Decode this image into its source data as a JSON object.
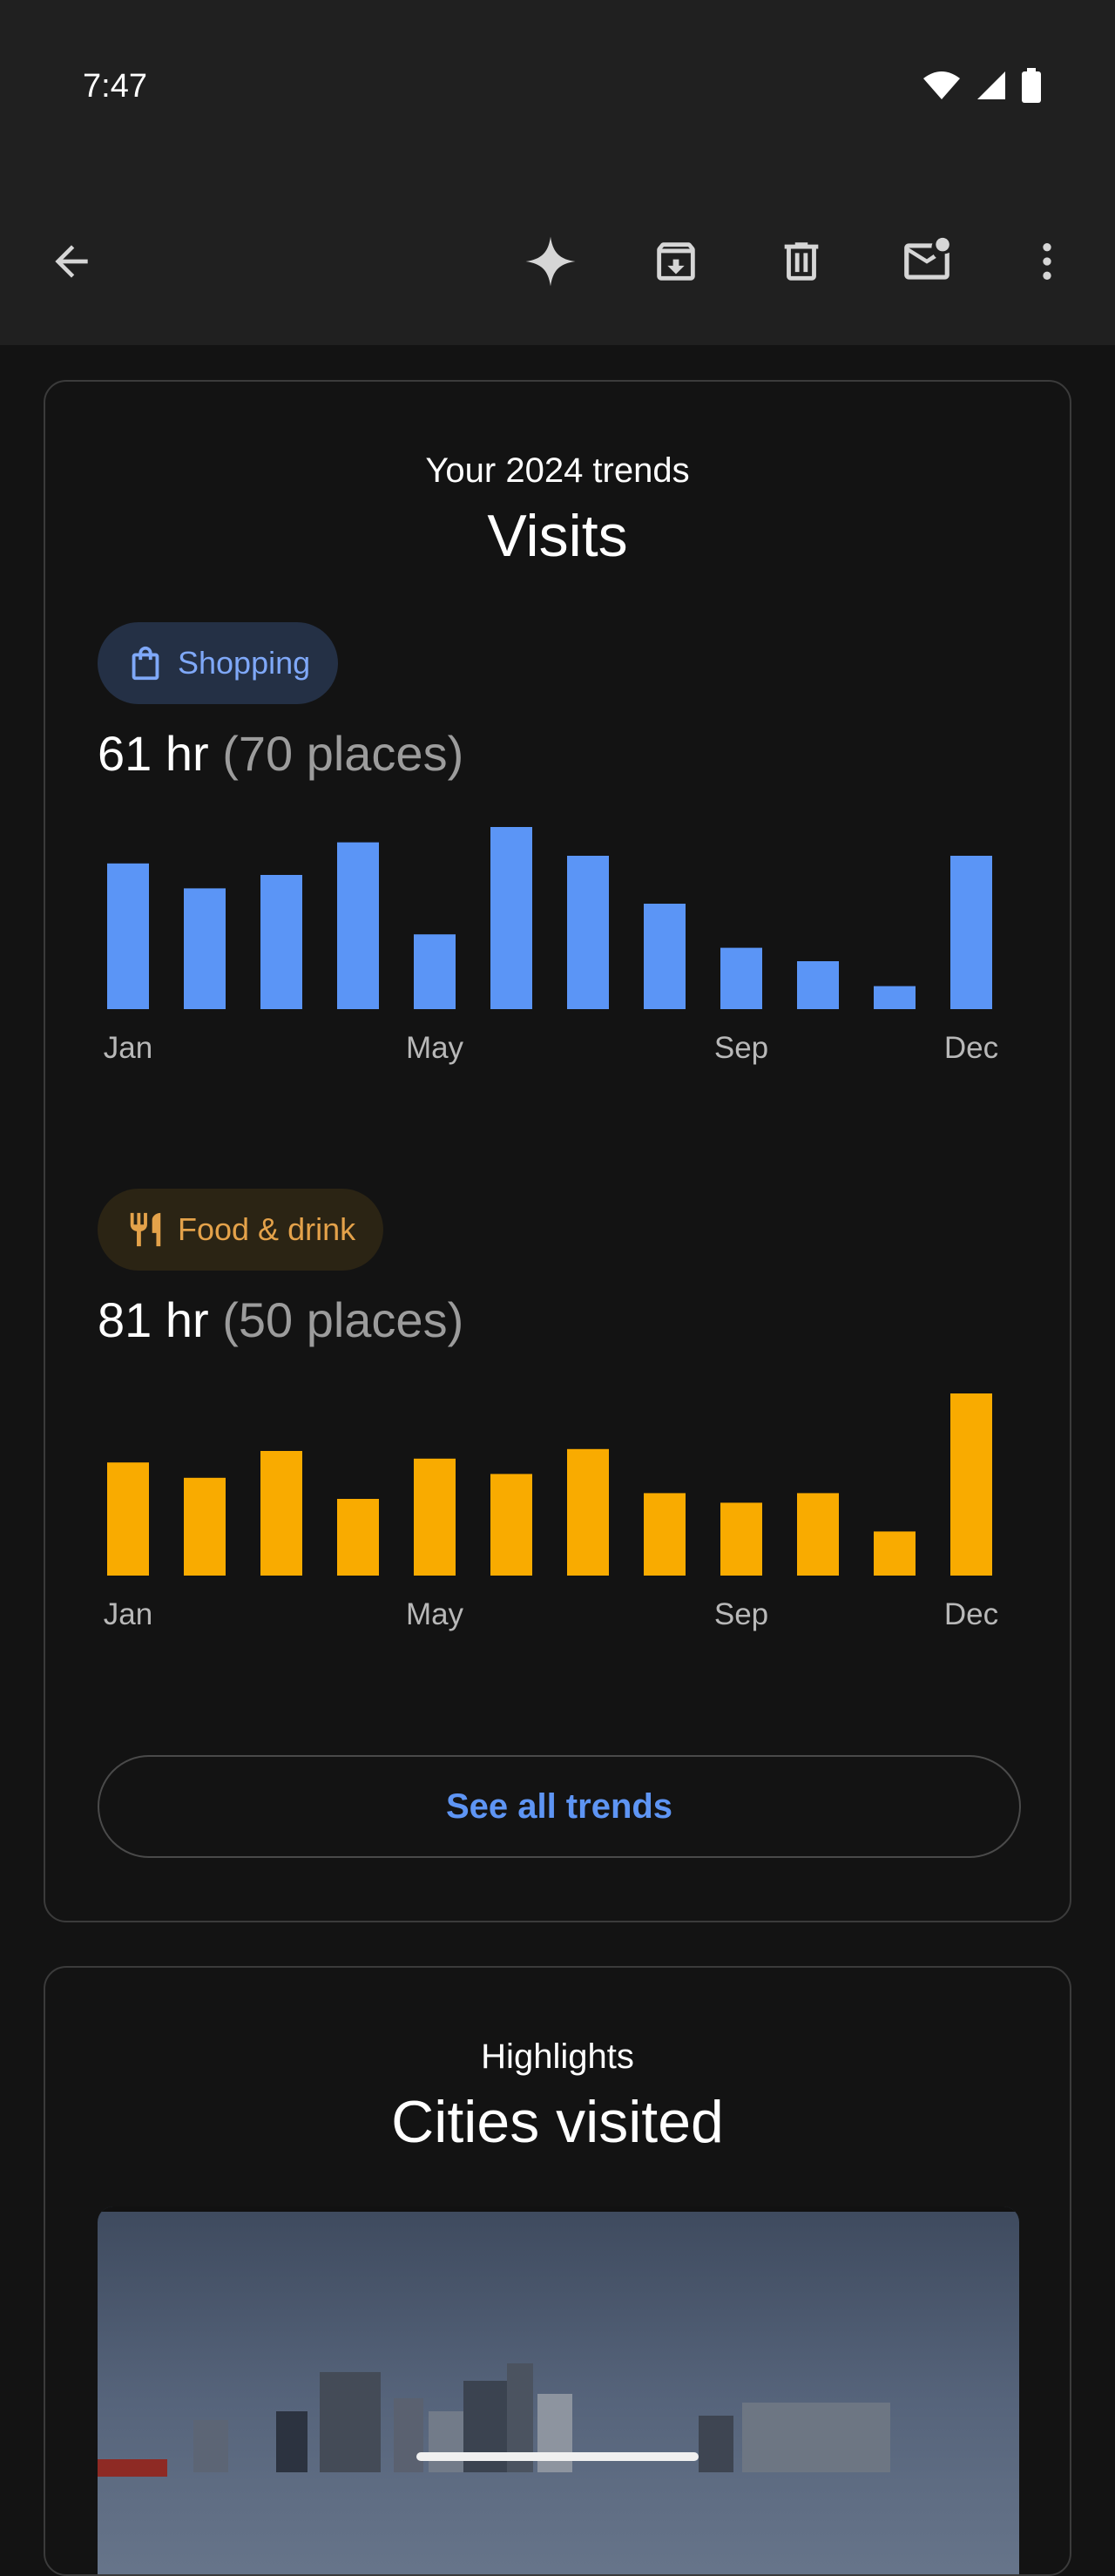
{
  "status_bar": {
    "time": "7:47",
    "icons": [
      "wifi-icon",
      "signal-icon",
      "battery-icon"
    ]
  },
  "app_bar": {
    "actions": [
      "back-arrow-icon",
      "sparkle-icon",
      "archive-icon",
      "trash-icon",
      "mark-unread-icon",
      "more-vert-icon"
    ]
  },
  "trends_card": {
    "subtitle": "Your 2024 trends",
    "title": "Visits",
    "button_label": "See all trends"
  },
  "shopping": {
    "chip_label": "Shopping",
    "hours": "61 hr",
    "places": "(70 places)",
    "color": "#5b95f6",
    "chip_bg": "#243045"
  },
  "food": {
    "chip_label": "Food & drink",
    "hours": "81 hr",
    "places": "(50 places)",
    "color": "#f9ab00",
    "chip_bg": "#2b2414"
  },
  "chart_data": [
    {
      "type": "bar",
      "categories": [
        "Jan",
        "Feb",
        "Mar",
        "Apr",
        "May",
        "Jun",
        "Jul",
        "Aug",
        "Sep",
        "Oct",
        "Nov",
        "Dec"
      ],
      "tick_labels": [
        "Jan",
        "May",
        "Sep",
        "Dec"
      ],
      "values": [
        76,
        63,
        70,
        87,
        39,
        95,
        80,
        55,
        32,
        25,
        12,
        80
      ],
      "ylim": [
        0,
        100
      ],
      "color": "#5b95f6",
      "grid": false
    },
    {
      "type": "bar",
      "categories": [
        "Jan",
        "Feb",
        "Mar",
        "Apr",
        "May",
        "Jun",
        "Jul",
        "Aug",
        "Sep",
        "Oct",
        "Nov",
        "Dec"
      ],
      "tick_labels": [
        "Jan",
        "May",
        "Sep",
        "Dec"
      ],
      "values": [
        59,
        51,
        65,
        40,
        61,
        53,
        66,
        43,
        38,
        43,
        23,
        95
      ],
      "ylim": [
        0,
        100
      ],
      "color": "#f9ab00",
      "grid": false
    }
  ],
  "highlights_card": {
    "subtitle": "Highlights",
    "title": "Cities visited"
  }
}
